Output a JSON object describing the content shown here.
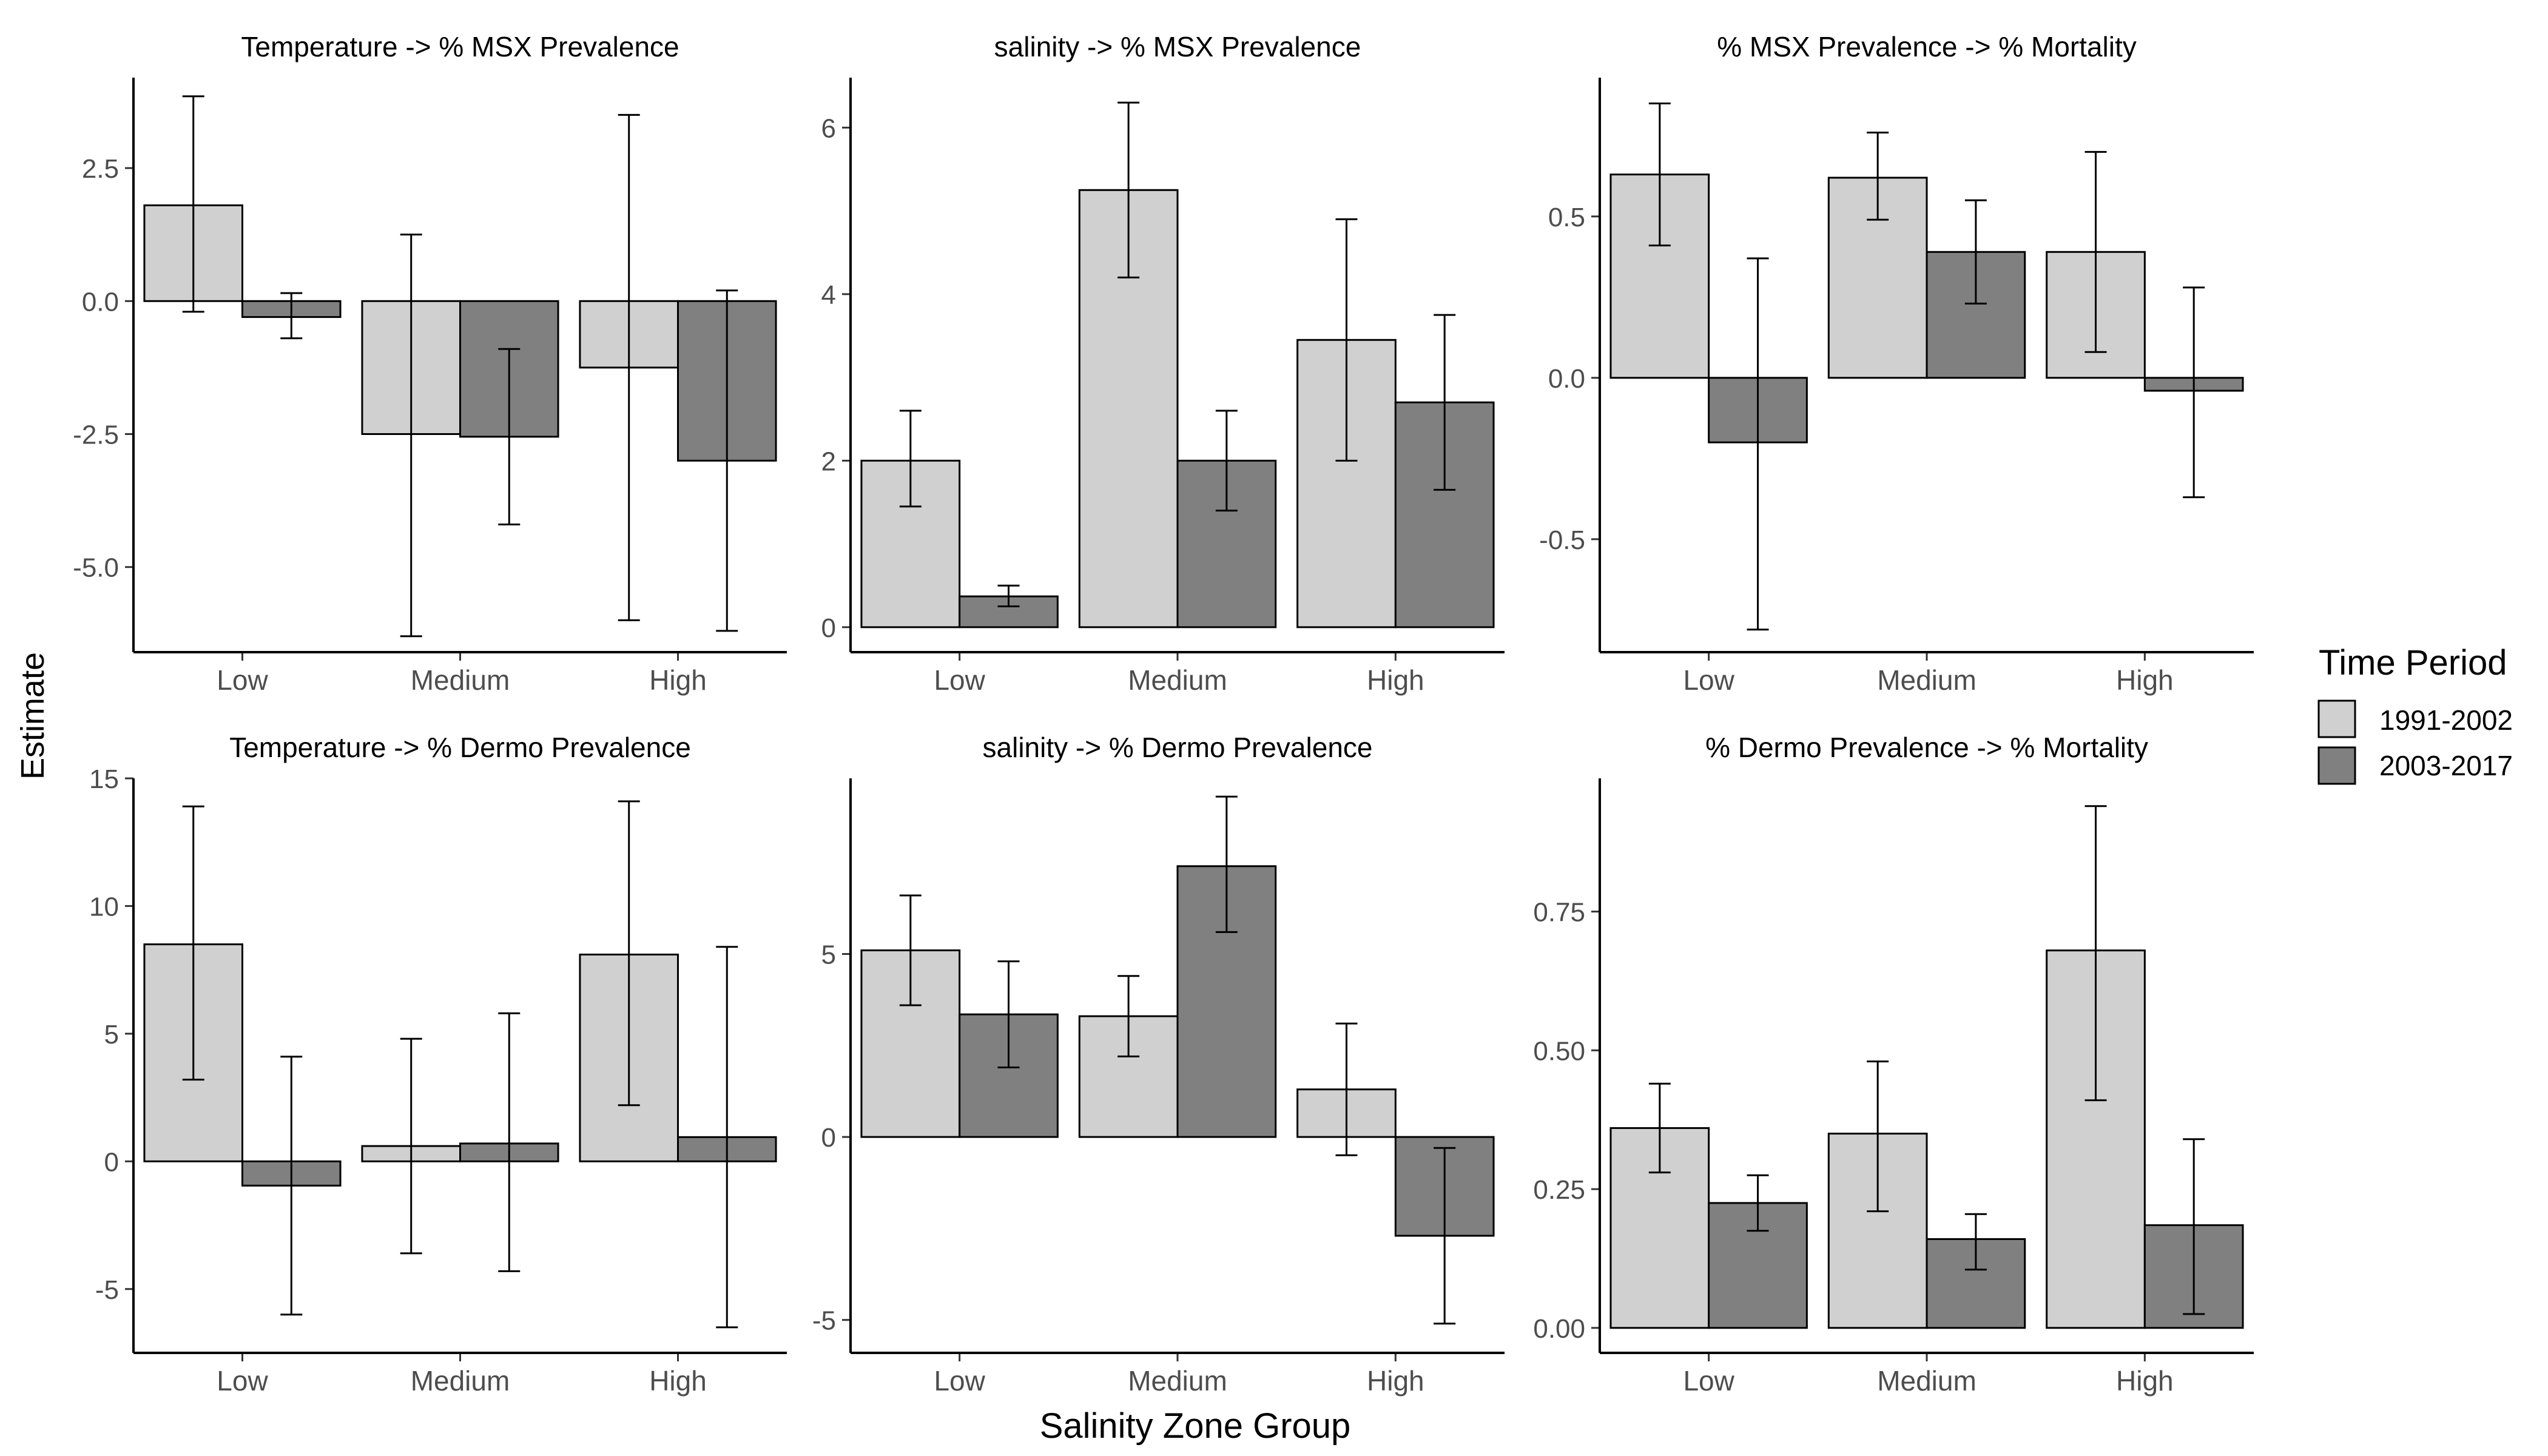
{
  "figure": {
    "ylabel": "Estimate",
    "xlabel": "Salinity Zone Group",
    "legend": {
      "title": "Time Period",
      "placement": "right",
      "items": [
        {
          "label": "1991-2002",
          "color": "#d0d0d0"
        },
        {
          "label": "2003-2017",
          "color": "#808080"
        }
      ]
    }
  },
  "chart_data": [
    {
      "type": "bar",
      "title": "Temperature -> % MSX Prevalence",
      "categories": [
        "Low",
        "Medium",
        "High"
      ],
      "ylim": [
        -6.6,
        4.2
      ],
      "yticks": [
        -5.0,
        -2.5,
        0.0,
        2.5
      ],
      "ytick_labels": [
        "-5.0",
        "-2.5",
        "0.0",
        "2.5"
      ],
      "series": [
        {
          "name": "1991-2002",
          "values": [
            1.8,
            -2.5,
            -1.25
          ],
          "lower": [
            -0.2,
            -6.3,
            -6.0
          ],
          "upper": [
            3.85,
            1.25,
            3.5
          ]
        },
        {
          "name": "2003-2017",
          "values": [
            -0.3,
            -2.55,
            -3.0
          ],
          "lower": [
            -0.7,
            -4.2,
            -6.2
          ],
          "upper": [
            0.15,
            -0.9,
            0.2
          ]
        }
      ]
    },
    {
      "type": "bar",
      "title": "salinity -> % MSX Prevalence",
      "categories": [
        "Low",
        "Medium",
        "High"
      ],
      "ylim": [
        -0.3,
        6.6
      ],
      "yticks": [
        0,
        2,
        4,
        6
      ],
      "ytick_labels": [
        "0",
        "2",
        "4",
        "6"
      ],
      "series": [
        {
          "name": "1991-2002",
          "values": [
            2.0,
            5.25,
            3.45
          ],
          "lower": [
            1.45,
            4.2,
            2.0
          ],
          "upper": [
            2.6,
            6.3,
            4.9
          ]
        },
        {
          "name": "2003-2017",
          "values": [
            0.37,
            2.0,
            2.7
          ],
          "lower": [
            0.25,
            1.4,
            1.65
          ],
          "upper": [
            0.5,
            2.6,
            3.75
          ]
        }
      ]
    },
    {
      "type": "bar",
      "title": "% MSX Prevalence -> % Mortality",
      "categories": [
        "Low",
        "Medium",
        "High"
      ],
      "ylim": [
        -0.85,
        0.93
      ],
      "yticks": [
        -0.5,
        0.0,
        0.5
      ],
      "ytick_labels": [
        "-0.5",
        "0.0",
        "0.5"
      ],
      "series": [
        {
          "name": "1991-2002",
          "values": [
            0.63,
            0.62,
            0.39
          ],
          "lower": [
            0.41,
            0.49,
            0.08
          ],
          "upper": [
            0.85,
            0.76,
            0.7
          ]
        },
        {
          "name": "2003-2017",
          "values": [
            -0.2,
            0.39,
            -0.04
          ],
          "lower": [
            -0.78,
            0.23,
            -0.37
          ],
          "upper": [
            0.37,
            0.55,
            0.28
          ]
        }
      ]
    },
    {
      "type": "bar",
      "title": "Temperature -> % Dermo Prevalence",
      "categories": [
        "Low",
        "Medium",
        "High"
      ],
      "ylim": [
        -7.5,
        15.0
      ],
      "yticks": [
        -5,
        0,
        5,
        10,
        15
      ],
      "ytick_labels": [
        "-5",
        "0",
        "5",
        "10",
        "15"
      ],
      "series": [
        {
          "name": "1991-2002",
          "values": [
            8.5,
            0.6,
            8.1
          ],
          "lower": [
            3.2,
            -3.6,
            2.2
          ],
          "upper": [
            13.9,
            4.8,
            14.1
          ]
        },
        {
          "name": "2003-2017",
          "values": [
            -0.95,
            0.7,
            0.95
          ],
          "lower": [
            -6.0,
            -4.3,
            -6.5
          ],
          "upper": [
            4.1,
            5.8,
            8.4
          ]
        }
      ]
    },
    {
      "type": "bar",
      "title": "salinity -> % Dermo Prevalence",
      "categories": [
        "Low",
        "Medium",
        "High"
      ],
      "ylim": [
        -5.9,
        9.8
      ],
      "yticks": [
        -5,
        0,
        5
      ],
      "ytick_labels": [
        "-5",
        "0",
        "5"
      ],
      "series": [
        {
          "name": "1991-2002",
          "values": [
            5.1,
            3.3,
            1.3
          ],
          "lower": [
            3.6,
            2.2,
            -0.5
          ],
          "upper": [
            6.6,
            4.4,
            3.1
          ]
        },
        {
          "name": "2003-2017",
          "values": [
            3.35,
            7.4,
            -2.7
          ],
          "lower": [
            1.9,
            5.6,
            -5.1
          ],
          "upper": [
            4.8,
            9.3,
            -0.3
          ]
        }
      ]
    },
    {
      "type": "bar",
      "title": "% Dermo Prevalence -> % Mortality",
      "categories": [
        "Low",
        "Medium",
        "High"
      ],
      "ylim": [
        -0.045,
        0.99
      ],
      "yticks": [
        0.0,
        0.25,
        0.5,
        0.75
      ],
      "ytick_labels": [
        "0.00",
        "0.25",
        "0.50",
        "0.75"
      ],
      "series": [
        {
          "name": "1991-2002",
          "values": [
            0.36,
            0.35,
            0.68
          ],
          "lower": [
            0.28,
            0.21,
            0.41
          ],
          "upper": [
            0.44,
            0.48,
            0.94
          ]
        },
        {
          "name": "2003-2017",
          "values": [
            0.225,
            0.16,
            0.185
          ],
          "lower": [
            0.175,
            0.105,
            0.025
          ],
          "upper": [
            0.275,
            0.205,
            0.34
          ]
        }
      ]
    }
  ]
}
